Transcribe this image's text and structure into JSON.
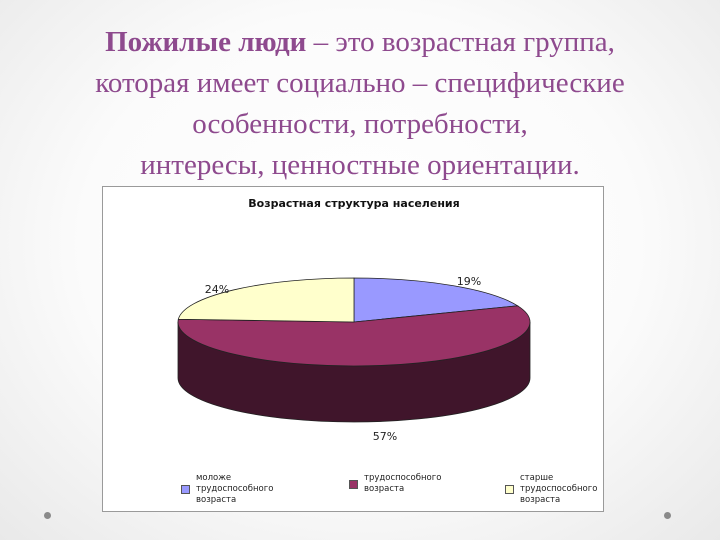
{
  "heading": {
    "bold_part": "Пожилые люди",
    "line1_rest": " – это возрастная группа,",
    "line2": "которая имеет социально – специфические",
    "line3": "особенности, потребности,",
    "line4": "интересы, ценностные ориентации."
  },
  "chart_data": {
    "type": "pie",
    "title": "Возрастная структура населения",
    "categories": [
      "моложе трудоспособного возраста",
      "трудоспособного возраста",
      "старше трудоспособного возраста"
    ],
    "values": [
      19,
      57,
      24
    ],
    "data_labels": [
      "19%",
      "57%",
      "24%"
    ],
    "colors": [
      "#9999ff",
      "#993366",
      "#ffffcc"
    ],
    "legend_position": "bottom",
    "style": "3d"
  }
}
